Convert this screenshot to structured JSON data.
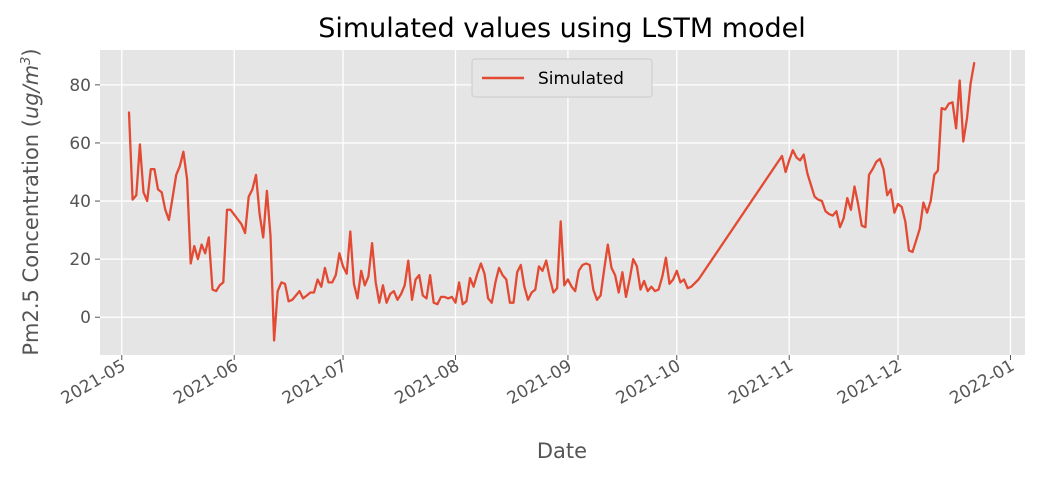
{
  "chart_data": {
    "type": "line",
    "title": "Simulated values using LSTM model",
    "xlabel": "Date",
    "ylabel": "Pm2.5 Concentration (",
    "ylabel_unit": "ug/m",
    "ylabel_unit_sup": "3",
    "ylabel_close": ")",
    "xlim": [
      "2021-04-25",
      "2022-01-05"
    ],
    "ylim": [
      -13,
      92
    ],
    "grid": true,
    "legend_position": "top-center",
    "colors": {
      "background": "#E5E5E5",
      "grid": "#FFFFFF",
      "line": "#E24A33",
      "text": "#555555"
    },
    "x_ticks": [
      {
        "date": "2021-05-01",
        "label": "2021-05"
      },
      {
        "date": "2021-06-01",
        "label": "2021-06"
      },
      {
        "date": "2021-07-01",
        "label": "2021-07"
      },
      {
        "date": "2021-08-01",
        "label": "2021-08"
      },
      {
        "date": "2021-09-01",
        "label": "2021-09"
      },
      {
        "date": "2021-10-01",
        "label": "2021-10"
      },
      {
        "date": "2021-11-01",
        "label": "2021-11"
      },
      {
        "date": "2021-12-01",
        "label": "2021-12"
      },
      {
        "date": "2022-01-01",
        "label": "2022-01"
      }
    ],
    "y_ticks": [
      {
        "value": 0,
        "label": "0"
      },
      {
        "value": 20,
        "label": "20"
      },
      {
        "value": 40,
        "label": "40"
      },
      {
        "value": 60,
        "label": "60"
      },
      {
        "value": 80,
        "label": "80"
      }
    ],
    "series": [
      {
        "name": "Simulated",
        "points": [
          [
            "2021-05-03",
            70.5
          ],
          [
            "2021-05-04",
            40.5
          ],
          [
            "2021-05-05",
            42
          ],
          [
            "2021-05-06",
            59.5
          ],
          [
            "2021-05-07",
            43
          ],
          [
            "2021-05-08",
            40
          ],
          [
            "2021-05-09",
            51
          ],
          [
            "2021-05-10",
            51
          ],
          [
            "2021-05-11",
            44
          ],
          [
            "2021-05-12",
            43
          ],
          [
            "2021-05-13",
            37
          ],
          [
            "2021-05-14",
            33.5
          ],
          [
            "2021-05-15",
            41
          ],
          [
            "2021-05-16",
            49
          ],
          [
            "2021-05-17",
            52
          ],
          [
            "2021-05-18",
            57
          ],
          [
            "2021-05-19",
            47.5
          ],
          [
            "2021-05-20",
            18.5
          ],
          [
            "2021-05-21",
            24.5
          ],
          [
            "2021-05-22",
            20
          ],
          [
            "2021-05-23",
            25
          ],
          [
            "2021-05-24",
            22
          ],
          [
            "2021-05-25",
            27.5
          ],
          [
            "2021-05-26",
            9.5
          ],
          [
            "2021-05-27",
            9
          ],
          [
            "2021-05-28",
            11
          ],
          [
            "2021-05-29",
            12
          ],
          [
            "2021-05-30",
            37
          ],
          [
            "2021-05-31",
            37
          ],
          [
            "2021-06-03",
            32
          ],
          [
            "2021-06-04",
            29
          ],
          [
            "2021-06-05",
            41.5
          ],
          [
            "2021-06-06",
            44
          ],
          [
            "2021-06-07",
            49
          ],
          [
            "2021-06-08",
            35.5
          ],
          [
            "2021-06-09",
            27.5
          ],
          [
            "2021-06-10",
            43.5
          ],
          [
            "2021-06-11",
            28
          ],
          [
            "2021-06-12",
            -8
          ],
          [
            "2021-06-13",
            9
          ],
          [
            "2021-06-14",
            12
          ],
          [
            "2021-06-15",
            11.5
          ],
          [
            "2021-06-16",
            5.5
          ],
          [
            "2021-06-17",
            6
          ],
          [
            "2021-06-18",
            7.5
          ],
          [
            "2021-06-19",
            9
          ],
          [
            "2021-06-20",
            6.5
          ],
          [
            "2021-06-21",
            7.5
          ],
          [
            "2021-06-22",
            8.5
          ],
          [
            "2021-06-23",
            8.5
          ],
          [
            "2021-06-24",
            13
          ],
          [
            "2021-06-25",
            10.5
          ],
          [
            "2021-06-26",
            17
          ],
          [
            "2021-06-27",
            12
          ],
          [
            "2021-06-28",
            12
          ],
          [
            "2021-06-29",
            14.5
          ],
          [
            "2021-06-30",
            22
          ],
          [
            "2021-07-01",
            17.5
          ],
          [
            "2021-07-02",
            15
          ],
          [
            "2021-07-03",
            29.5
          ],
          [
            "2021-07-04",
            11.5
          ],
          [
            "2021-07-05",
            6.5
          ],
          [
            "2021-07-06",
            16
          ],
          [
            "2021-07-07",
            11
          ],
          [
            "2021-07-08",
            14
          ],
          [
            "2021-07-09",
            25.5
          ],
          [
            "2021-07-10",
            12
          ],
          [
            "2021-07-11",
            5
          ],
          [
            "2021-07-12",
            11
          ],
          [
            "2021-07-13",
            5
          ],
          [
            "2021-07-14",
            8
          ],
          [
            "2021-07-15",
            9
          ],
          [
            "2021-07-16",
            6
          ],
          [
            "2021-07-17",
            8
          ],
          [
            "2021-07-18",
            11
          ],
          [
            "2021-07-19",
            19.5
          ],
          [
            "2021-07-20",
            6
          ],
          [
            "2021-07-21",
            13
          ],
          [
            "2021-07-22",
            14.5
          ],
          [
            "2021-07-23",
            7.5
          ],
          [
            "2021-07-24",
            6.5
          ],
          [
            "2021-07-25",
            14.5
          ],
          [
            "2021-07-26",
            5
          ],
          [
            "2021-07-27",
            4.5
          ],
          [
            "2021-07-28",
            7
          ],
          [
            "2021-07-29",
            7
          ],
          [
            "2021-07-30",
            6.5
          ],
          [
            "2021-07-31",
            7
          ],
          [
            "2021-08-01",
            5
          ],
          [
            "2021-08-02",
            12
          ],
          [
            "2021-08-03",
            4.5
          ],
          [
            "2021-08-04",
            5.5
          ],
          [
            "2021-08-05",
            13.5
          ],
          [
            "2021-08-06",
            10.5
          ],
          [
            "2021-08-07",
            15
          ],
          [
            "2021-08-08",
            18.5
          ],
          [
            "2021-08-09",
            15
          ],
          [
            "2021-08-10",
            6.5
          ],
          [
            "2021-08-11",
            5
          ],
          [
            "2021-08-12",
            12
          ],
          [
            "2021-08-13",
            17
          ],
          [
            "2021-08-14",
            14.5
          ],
          [
            "2021-08-15",
            13
          ],
          [
            "2021-08-16",
            5
          ],
          [
            "2021-08-17",
            5
          ],
          [
            "2021-08-18",
            15.5
          ],
          [
            "2021-08-19",
            18
          ],
          [
            "2021-08-20",
            10.5
          ],
          [
            "2021-08-21",
            6
          ],
          [
            "2021-08-22",
            8.5
          ],
          [
            "2021-08-23",
            9.5
          ],
          [
            "2021-08-24",
            17.5
          ],
          [
            "2021-08-25",
            16
          ],
          [
            "2021-08-26",
            19.5
          ],
          [
            "2021-08-27",
            13.5
          ],
          [
            "2021-08-28",
            8.5
          ],
          [
            "2021-08-29",
            10
          ],
          [
            "2021-08-30",
            33
          ],
          [
            "2021-08-31",
            11
          ],
          [
            "2021-09-01",
            13
          ],
          [
            "2021-09-02",
            10.5
          ],
          [
            "2021-09-03",
            9
          ],
          [
            "2021-09-04",
            16
          ],
          [
            "2021-09-05",
            18
          ],
          [
            "2021-09-06",
            18.5
          ],
          [
            "2021-09-07",
            18
          ],
          [
            "2021-09-08",
            9.5
          ],
          [
            "2021-09-09",
            6
          ],
          [
            "2021-09-10",
            7.5
          ],
          [
            "2021-09-11",
            16.5
          ],
          [
            "2021-09-12",
            25
          ],
          [
            "2021-09-13",
            17
          ],
          [
            "2021-09-14",
            14.5
          ],
          [
            "2021-09-15",
            8.5
          ],
          [
            "2021-09-16",
            15.5
          ],
          [
            "2021-09-17",
            7
          ],
          [
            "2021-09-18",
            13
          ],
          [
            "2021-09-19",
            20
          ],
          [
            "2021-09-20",
            17.5
          ],
          [
            "2021-09-21",
            9.5
          ],
          [
            "2021-09-22",
            12.5
          ],
          [
            "2021-09-23",
            9
          ],
          [
            "2021-09-24",
            10.5
          ],
          [
            "2021-09-25",
            9
          ],
          [
            "2021-09-26",
            9.5
          ],
          [
            "2021-09-27",
            14
          ],
          [
            "2021-09-28",
            20.5
          ],
          [
            "2021-09-29",
            11.5
          ],
          [
            "2021-09-30",
            13
          ],
          [
            "2021-10-01",
            16
          ],
          [
            "2021-10-02",
            12
          ],
          [
            "2021-10-03",
            13
          ],
          [
            "2021-10-04",
            10
          ],
          [
            "2021-10-05",
            10.5
          ],
          [
            "2021-10-07",
            13
          ],
          [
            "2021-10-30",
            55.5
          ],
          [
            "2021-10-31",
            50
          ],
          [
            "2021-11-01",
            54
          ],
          [
            "2021-11-02",
            57.5
          ],
          [
            "2021-11-03",
            55
          ],
          [
            "2021-11-04",
            54
          ],
          [
            "2021-11-05",
            56
          ],
          [
            "2021-11-06",
            49.5
          ],
          [
            "2021-11-07",
            45.5
          ],
          [
            "2021-11-08",
            41.5
          ],
          [
            "2021-11-09",
            40.5
          ],
          [
            "2021-11-10",
            40
          ],
          [
            "2021-11-11",
            36.5
          ],
          [
            "2021-11-12",
            35.5
          ],
          [
            "2021-11-13",
            35
          ],
          [
            "2021-11-14",
            36.5
          ],
          [
            "2021-11-15",
            31
          ],
          [
            "2021-11-16",
            34
          ],
          [
            "2021-11-17",
            41
          ],
          [
            "2021-11-18",
            37
          ],
          [
            "2021-11-19",
            45
          ],
          [
            "2021-11-20",
            39
          ],
          [
            "2021-11-21",
            31.5
          ],
          [
            "2021-11-22",
            31
          ],
          [
            "2021-11-23",
            49
          ],
          [
            "2021-11-24",
            51
          ],
          [
            "2021-11-25",
            53.5
          ],
          [
            "2021-11-26",
            54.5
          ],
          [
            "2021-11-27",
            51
          ],
          [
            "2021-11-28",
            42
          ],
          [
            "2021-11-29",
            44
          ],
          [
            "2021-11-30",
            36
          ],
          [
            "2021-12-01",
            39
          ],
          [
            "2021-12-02",
            38
          ],
          [
            "2021-12-03",
            33
          ],
          [
            "2021-12-04",
            23
          ],
          [
            "2021-12-05",
            22.5
          ],
          [
            "2021-12-06",
            26.5
          ],
          [
            "2021-12-07",
            30.5
          ],
          [
            "2021-12-08",
            39.5
          ],
          [
            "2021-12-09",
            36
          ],
          [
            "2021-12-10",
            40
          ],
          [
            "2021-12-11",
            49
          ],
          [
            "2021-12-12",
            50.5
          ],
          [
            "2021-12-13",
            72
          ],
          [
            "2021-12-14",
            71.5
          ],
          [
            "2021-12-15",
            73.5
          ],
          [
            "2021-12-16",
            74
          ],
          [
            "2021-12-17",
            65
          ],
          [
            "2021-12-18",
            81.5
          ],
          [
            "2021-12-19",
            60.5
          ],
          [
            "2021-12-20",
            68.5
          ],
          [
            "2021-12-21",
            80.5
          ],
          [
            "2021-12-22",
            87.5
          ]
        ]
      }
    ]
  }
}
